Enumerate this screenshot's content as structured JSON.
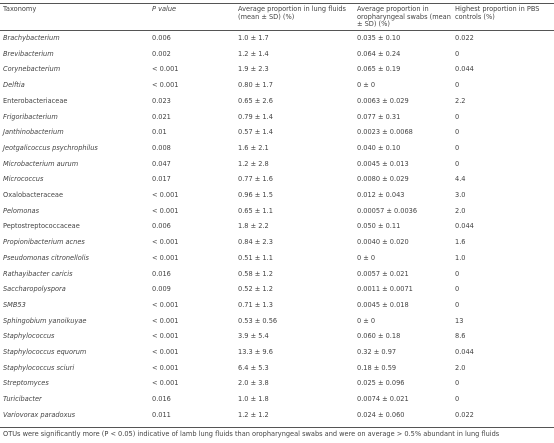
{
  "table": {
    "headers": [
      "Taxonomy",
      "P value",
      "Average proportion in lung fluids (mean ± SD) (%)",
      "Average proportion in oropharyngeal swabs (mean ± SD) (%)",
      "Highest proportion in PBS controls (%)"
    ],
    "rows": [
      {
        "cells": [
          "Brachybacterium",
          "0.006",
          "1.0 ± 1.7",
          "0.035 ± 0.10",
          "0.022"
        ],
        "italic": true
      },
      {
        "cells": [
          "Brevibacterium",
          "0.002",
          "1.2 ± 1.4",
          "0.064 ± 0.24",
          "0"
        ],
        "italic": true
      },
      {
        "cells": [
          "Corynebacterium",
          "< 0.001",
          "1.9 ± 2.3",
          "0.065 ± 0.19",
          "0.044"
        ],
        "italic": true
      },
      {
        "cells": [
          "Delftia",
          "< 0.001",
          "0.80 ± 1.7",
          "0 ± 0",
          "0"
        ],
        "italic": true
      },
      {
        "cells": [
          "Enterobacteriaceae",
          "0.023",
          "0.65 ± 2.6",
          "0.0063 ± 0.029",
          "2.2"
        ],
        "italic": false
      },
      {
        "cells": [
          "Frigoribacterium",
          "0.021",
          "0.79 ± 1.4",
          "0.077 ± 0.31",
          "0"
        ],
        "italic": true
      },
      {
        "cells": [
          "Janthinobacterium",
          "0.01",
          "0.57 ± 1.4",
          "0.0023 ± 0.0068",
          "0"
        ],
        "italic": true
      },
      {
        "cells": [
          "Jeotgalicoccus psychrophilus",
          "0.008",
          "1.6 ± 2.1",
          "0.040 ± 0.10",
          "0"
        ],
        "italic": true
      },
      {
        "cells": [
          "Microbacterium aurum",
          "0.047",
          "1.2 ± 2.8",
          "0.0045 ± 0.013",
          "0"
        ],
        "italic": true
      },
      {
        "cells": [
          "Micrococcus",
          "0.017",
          "0.77 ± 1.6",
          "0.0080 ± 0.029",
          "4.4"
        ],
        "italic": true
      },
      {
        "cells": [
          "Oxalobacteraceae",
          "< 0.001",
          "0.96 ± 1.5",
          "0.012 ± 0.043",
          "3.0"
        ],
        "italic": false
      },
      {
        "cells": [
          "Pelomonas",
          "< 0.001",
          "0.65 ± 1.1",
          "0.00057 ± 0.0036",
          "2.0"
        ],
        "italic": true
      },
      {
        "cells": [
          "Peptostreptococcaceae",
          "0.006",
          "1.8 ± 2.2",
          "0.050 ± 0.11",
          "0.044"
        ],
        "italic": false
      },
      {
        "cells": [
          "Propionibacterium acnes",
          "< 0.001",
          "0.84 ± 2.3",
          "0.0040 ± 0.020",
          "1.6"
        ],
        "italic": true
      },
      {
        "cells": [
          "Pseudomonas citronellolis",
          "< 0.001",
          "0.51 ± 1.1",
          "0 ± 0",
          "1.0"
        ],
        "italic": true
      },
      {
        "cells": [
          "Rathayibacter caricis",
          "0.016",
          "0.58 ± 1.2",
          "0.0057 ± 0.021",
          "0"
        ],
        "italic": true
      },
      {
        "cells": [
          "Saccharopolyspora",
          "0.009",
          "0.52 ± 1.2",
          "0.0011 ± 0.0071",
          "0"
        ],
        "italic": true
      },
      {
        "cells": [
          "SMB53",
          "< 0.001",
          "0.71 ± 1.3",
          "0.0045 ± 0.018",
          "0"
        ],
        "italic": true
      },
      {
        "cells": [
          "Sphingobium yanoikuyae",
          "< 0.001",
          "0.53 ± 0.56",
          "0 ± 0",
          "13"
        ],
        "italic": true
      },
      {
        "cells": [
          "Staphylococcus",
          "< 0.001",
          "3.9 ± 5.4",
          "0.060 ± 0.18",
          "8.6"
        ],
        "italic": true
      },
      {
        "cells": [
          "Staphylococcus equorum",
          "< 0.001",
          "13.3 ± 9.6",
          "0.32 ± 0.97",
          "0.044"
        ],
        "italic": true
      },
      {
        "cells": [
          "Staphylococcus sciuri",
          "< 0.001",
          "6.4 ± 5.3",
          "0.18 ± 0.59",
          "2.0"
        ],
        "italic": true
      },
      {
        "cells": [
          "Streptomyces",
          "< 0.001",
          "2.0 ± 3.8",
          "0.025 ± 0.096",
          "0"
        ],
        "italic": true
      },
      {
        "cells": [
          "Turicibacter",
          "0.016",
          "1.0 ± 1.8",
          "0.0074 ± 0.021",
          "0"
        ],
        "italic": true
      },
      {
        "cells": [
          "Variovorax paradoxus",
          "0.011",
          "1.2 ± 1.2",
          "0.024 ± 0.060",
          "0.022"
        ],
        "italic": true
      }
    ],
    "footnote": "OTUs were significantly more (P < 0.05) indicative of lamb lung fluids than oropharyngeal swabs and were on average > 0.5% abundant in lung fluids"
  }
}
